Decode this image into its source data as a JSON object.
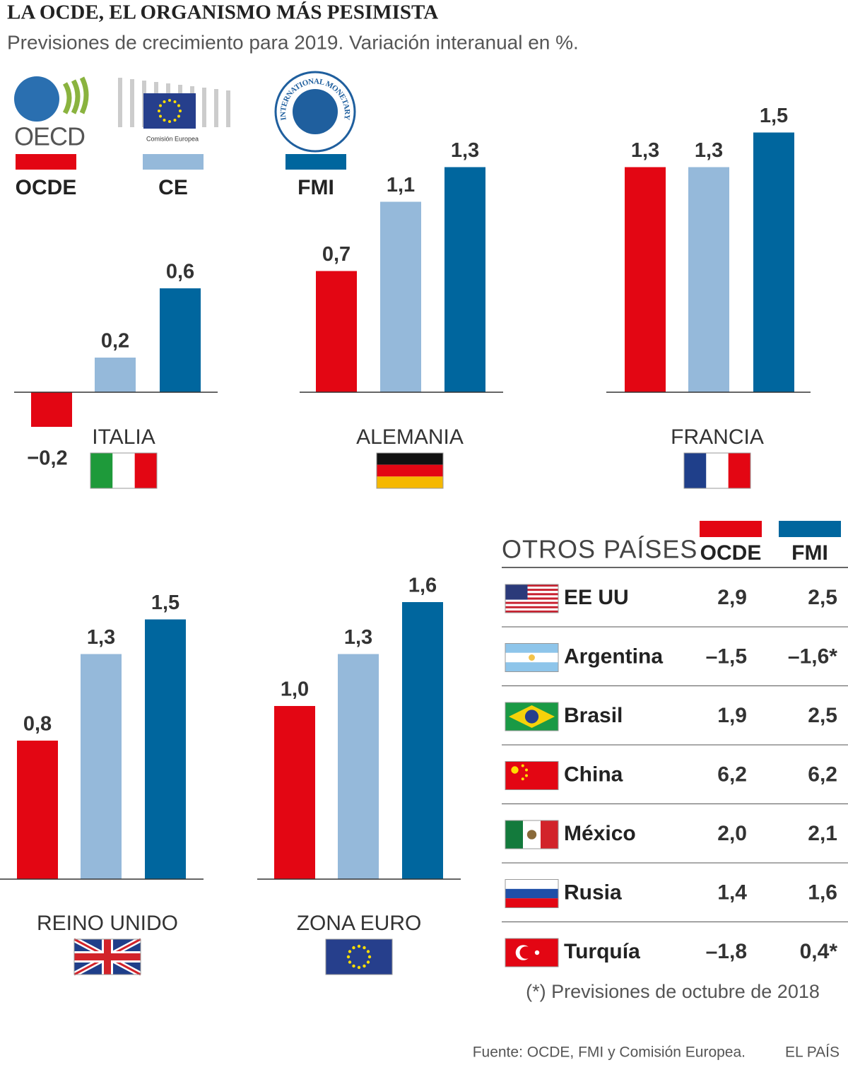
{
  "title": "LA OCDE, EL ORGANISMO MÁS PESIMISTA",
  "subtitle": "Previsiones de crecimiento para 2019. Variación interanual en %.",
  "legend": [
    {
      "name": "OCDE",
      "color": "#e30613",
      "logo": "OECD"
    },
    {
      "name": "CE",
      "color": "#95b9da",
      "logo": "Comisión Europea"
    },
    {
      "name": "FMI",
      "color": "#00669e",
      "logo": "INTERNATIONAL MONETARY FUND"
    }
  ],
  "chart_data": [
    {
      "type": "bar",
      "title": "ITALIA",
      "values": [
        -0.2,
        0.2,
        0.6
      ],
      "value_labels": [
        "−0,2",
        "0,2",
        "0,6"
      ]
    },
    {
      "type": "bar",
      "title": "ALEMANIA",
      "values": [
        0.7,
        1.1,
        1.3
      ],
      "value_labels": [
        "0,7",
        "1,1",
        "1,3"
      ]
    },
    {
      "type": "bar",
      "title": "FRANCIA",
      "values": [
        1.3,
        1.3,
        1.5
      ],
      "value_labels": [
        "1,3",
        "1,3",
        "1,5"
      ]
    },
    {
      "type": "bar",
      "title": "REINO UNIDO",
      "values": [
        0.8,
        1.3,
        1.5
      ],
      "value_labels": [
        "0,8",
        "1,3",
        "1,5"
      ]
    },
    {
      "type": "bar",
      "title": "ZONA EURO",
      "values": [
        1.0,
        1.3,
        1.6
      ],
      "value_labels": [
        "1,0",
        "1,3",
        "1,6"
      ]
    }
  ],
  "table": {
    "title": "OTROS PAÍSES",
    "columns": [
      {
        "name": "OCDE",
        "color": "#e30613"
      },
      {
        "name": "FMI",
        "color": "#00669e"
      }
    ],
    "rows": [
      [
        "EE UU",
        "2,9",
        "2,5"
      ],
      [
        "Argentina",
        "–1,5",
        "–1,6*"
      ],
      [
        "Brasil",
        "1,9",
        "2,5"
      ],
      [
        "China",
        "6,2",
        "6,2"
      ],
      [
        "México",
        "2,0",
        "2,1"
      ],
      [
        "Rusia",
        "1,4",
        "1,6"
      ],
      [
        "Turquía",
        "–1,8",
        "0,4*"
      ]
    ],
    "footnote": "(*) Previsiones de octubre de 2018"
  },
  "source": "Fuente: OCDE, FMI y Comisión Europea.",
  "brand": "EL PAÍS"
}
